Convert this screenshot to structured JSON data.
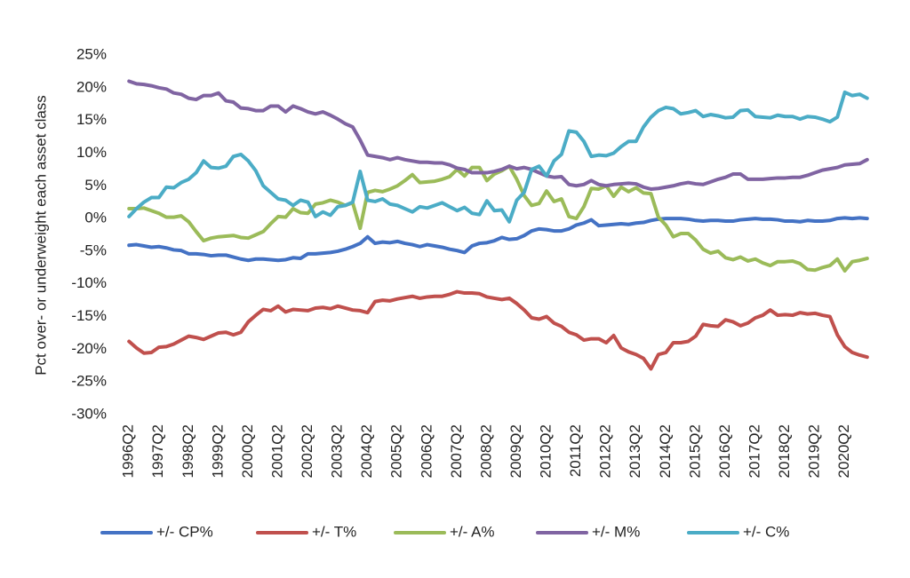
{
  "chart_data": {
    "type": "line",
    "y_label": "Pct over- or underweight each asset class",
    "categories": [
      "1996Q2",
      null,
      null,
      null,
      "1997Q2",
      null,
      null,
      null,
      "1998Q2",
      null,
      null,
      null,
      "1999Q2",
      null,
      null,
      null,
      "2000Q2",
      null,
      null,
      null,
      "2001Q2",
      null,
      null,
      null,
      "2002Q2",
      null,
      null,
      null,
      "2003Q2",
      null,
      null,
      null,
      "2004Q2",
      null,
      null,
      null,
      "2005Q2",
      null,
      null,
      null,
      "2006Q2",
      null,
      null,
      null,
      "2007Q2",
      null,
      null,
      null,
      "2008Q2",
      null,
      null,
      null,
      "2009Q2",
      null,
      null,
      null,
      "2010Q2",
      null,
      null,
      null,
      "2011Q2",
      null,
      null,
      null,
      "2012Q2",
      null,
      null,
      null,
      "2013Q2",
      null,
      null,
      null,
      "2014Q2",
      null,
      null,
      null,
      "2015Q2",
      null,
      null,
      null,
      "2016Q2",
      null,
      null,
      null,
      "2017Q2",
      null,
      null,
      null,
      "2018Q2",
      null,
      null,
      null,
      "2019Q2",
      null,
      null,
      null,
      "2020Q2",
      null,
      null,
      null
    ],
    "ylim": [
      -30,
      25
    ],
    "yticks": [
      {
        "value": -30,
        "label": "-30%"
      },
      {
        "value": -25,
        "label": "-25%"
      },
      {
        "value": -20,
        "label": "-20%"
      },
      {
        "value": -15,
        "label": "-15%"
      },
      {
        "value": -10,
        "label": "-10%"
      },
      {
        "value": -5,
        "label": "-5%"
      },
      {
        "value": 0,
        "label": "0%"
      },
      {
        "value": 5,
        "label": "5%"
      },
      {
        "value": 10,
        "label": "10%"
      },
      {
        "value": 15,
        "label": "15%"
      },
      {
        "value": 20,
        "label": "20%"
      },
      {
        "value": 25,
        "label": "25%"
      }
    ],
    "grid": false,
    "legend": "bottom",
    "series": [
      {
        "name": "+/- CP%",
        "color": "#4472c4",
        "values": [
          -4.1,
          -4.0,
          -4.2,
          -4.4,
          -4.3,
          -4.5,
          -4.8,
          -4.9,
          -5.4,
          -5.4,
          -5.5,
          -5.7,
          -5.6,
          -5.6,
          -5.9,
          -6.2,
          -6.4,
          -6.2,
          -6.2,
          -6.3,
          -6.4,
          -6.3,
          -6.0,
          -6.1,
          -5.4,
          -5.4,
          -5.3,
          -5.2,
          -5.0,
          -4.7,
          -4.3,
          -3.8,
          -2.8,
          -3.8,
          -3.6,
          -3.7,
          -3.5,
          -3.8,
          -4.0,
          -4.3,
          -4.0,
          -4.2,
          -4.4,
          -4.7,
          -4.9,
          -5.2,
          -4.2,
          -3.8,
          -3.7,
          -3.4,
          -2.9,
          -3.2,
          -3.1,
          -2.6,
          -1.9,
          -1.6,
          -1.7,
          -1.9,
          -1.9,
          -1.6,
          -1.0,
          -0.7,
          -0.2,
          -1.1,
          -1.0,
          -0.9,
          -0.8,
          -0.9,
          -0.7,
          -0.6,
          -0.3,
          -0.1,
          0.0,
          0.0,
          0.0,
          -0.1,
          -0.3,
          -0.4,
          -0.3,
          -0.3,
          -0.4,
          -0.4,
          -0.2,
          -0.1,
          0.0,
          -0.1,
          -0.1,
          -0.2,
          -0.4,
          -0.4,
          -0.5,
          -0.3,
          -0.4,
          -0.4,
          -0.3,
          0.0,
          0.1,
          0.0,
          0.1,
          0.0
        ]
      },
      {
        "name": "+/- T%",
        "color": "#c0504d",
        "values": [
          -18.8,
          -19.8,
          -20.6,
          -20.5,
          -19.7,
          -19.6,
          -19.2,
          -18.6,
          -18.0,
          -18.2,
          -18.5,
          -18.0,
          -17.5,
          -17.4,
          -17.8,
          -17.4,
          -15.8,
          -14.8,
          -13.9,
          -14.1,
          -13.4,
          -14.3,
          -13.9,
          -14.0,
          -14.1,
          -13.7,
          -13.6,
          -13.8,
          -13.4,
          -13.7,
          -14.0,
          -14.1,
          -14.4,
          -12.7,
          -12.5,
          -12.6,
          -12.3,
          -12.1,
          -11.9,
          -12.2,
          -12.0,
          -11.9,
          -11.9,
          -11.6,
          -11.2,
          -11.4,
          -11.4,
          -11.5,
          -12.0,
          -12.2,
          -12.4,
          -12.2,
          -13.0,
          -14.0,
          -15.2,
          -15.4,
          -15.0,
          -16.0,
          -16.5,
          -17.4,
          -17.8,
          -18.6,
          -18.4,
          -18.4,
          -19.0,
          -17.9,
          -19.8,
          -20.4,
          -20.8,
          -21.4,
          -23.0,
          -20.8,
          -20.5,
          -19.0,
          -19.0,
          -18.8,
          -18.0,
          -16.2,
          -16.4,
          -16.5,
          -15.5,
          -15.8,
          -16.4,
          -16.0,
          -15.2,
          -14.8,
          -14.0,
          -14.8,
          -14.7,
          -14.8,
          -14.4,
          -14.6,
          -14.5,
          -14.8,
          -15.0,
          -17.8,
          -19.6,
          -20.5,
          -20.9,
          -21.2
        ]
      },
      {
        "name": "+/- A%",
        "color": "#9bbb59",
        "values": [
          1.5,
          1.5,
          1.6,
          1.2,
          0.8,
          0.2,
          0.2,
          0.4,
          -0.5,
          -2.0,
          -3.4,
          -3.0,
          -2.8,
          -2.7,
          -2.6,
          -2.9,
          -3.0,
          -2.5,
          -2.0,
          -0.8,
          0.3,
          0.2,
          1.5,
          0.9,
          0.8,
          2.2,
          2.4,
          2.8,
          2.5,
          2.0,
          2.4,
          -1.5,
          4.0,
          4.3,
          4.1,
          4.5,
          5.0,
          5.8,
          6.7,
          5.5,
          5.6,
          5.7,
          6.0,
          6.4,
          7.5,
          6.5,
          7.8,
          7.8,
          5.8,
          6.8,
          7.3,
          8.0,
          6.0,
          3.5,
          2.0,
          2.3,
          4.2,
          2.6,
          3.0,
          0.3,
          0.0,
          1.8,
          4.6,
          4.5,
          5.0,
          3.4,
          4.8,
          4.1,
          4.7,
          3.9,
          3.8,
          0.2,
          -1.0,
          -2.8,
          -2.3,
          -2.3,
          -3.3,
          -4.7,
          -5.3,
          -5.0,
          -6.0,
          -6.3,
          -5.9,
          -6.5,
          -6.2,
          -6.8,
          -7.2,
          -6.6,
          -6.6,
          -6.5,
          -6.9,
          -7.8,
          -7.9,
          -7.5,
          -7.2,
          -6.2,
          -8.0,
          -6.6,
          -6.4,
          -6.1
        ]
      },
      {
        "name": "+/- M%",
        "color": "#8064a2",
        "values": [
          21.0,
          20.6,
          20.5,
          20.3,
          20.0,
          19.8,
          19.2,
          19.0,
          18.4,
          18.2,
          18.8,
          18.8,
          19.2,
          18.0,
          17.8,
          16.9,
          16.8,
          16.5,
          16.5,
          17.2,
          17.2,
          16.3,
          17.2,
          16.8,
          16.3,
          16.0,
          16.3,
          15.8,
          15.2,
          14.5,
          14.0,
          12.0,
          9.7,
          9.5,
          9.3,
          9.0,
          9.3,
          9.0,
          8.8,
          8.6,
          8.6,
          8.5,
          8.5,
          8.2,
          7.7,
          7.5,
          7.0,
          7.0,
          7.0,
          7.2,
          7.5,
          8.0,
          7.6,
          7.8,
          7.5,
          7.0,
          6.5,
          6.3,
          6.4,
          5.2,
          5.0,
          5.2,
          5.8,
          5.2,
          5.0,
          5.2,
          5.3,
          5.4,
          5.3,
          4.8,
          4.5,
          4.6,
          4.8,
          5.0,
          5.3,
          5.5,
          5.3,
          5.2,
          5.6,
          6.0,
          6.3,
          6.8,
          6.8,
          6.0,
          6.0,
          6.0,
          6.1,
          6.2,
          6.2,
          6.3,
          6.3,
          6.6,
          7.0,
          7.4,
          7.6,
          7.8,
          8.2,
          8.3,
          8.4,
          9.0
        ]
      },
      {
        "name": "+/- C%",
        "color": "#4bacc6",
        "values": [
          0.3,
          1.5,
          2.5,
          3.2,
          3.2,
          4.8,
          4.7,
          5.5,
          6.0,
          7.0,
          8.8,
          7.8,
          7.7,
          8.0,
          9.5,
          9.8,
          8.8,
          7.3,
          5.0,
          4.0,
          3.0,
          2.8,
          2.0,
          2.8,
          2.5,
          0.3,
          1.0,
          0.5,
          1.8,
          2.0,
          2.5,
          7.2,
          2.8,
          2.6,
          3.0,
          2.2,
          2.0,
          1.5,
          1.0,
          1.8,
          1.6,
          2.0,
          2.4,
          1.8,
          1.2,
          1.7,
          0.8,
          0.6,
          2.7,
          1.2,
          1.3,
          -0.5,
          2.8,
          4.0,
          7.5,
          8.0,
          6.5,
          8.8,
          9.8,
          13.4,
          13.2,
          11.8,
          9.5,
          9.7,
          9.6,
          10.0,
          11.0,
          11.8,
          11.8,
          14.0,
          15.5,
          16.5,
          17.0,
          16.8,
          16.0,
          16.2,
          16.5,
          15.6,
          15.9,
          15.7,
          15.4,
          15.5,
          16.5,
          16.6,
          15.6,
          15.5,
          15.4,
          15.8,
          15.6,
          15.6,
          15.2,
          15.6,
          15.5,
          15.2,
          14.8,
          15.5,
          19.3,
          18.8,
          19.0,
          18.4
        ]
      }
    ]
  }
}
